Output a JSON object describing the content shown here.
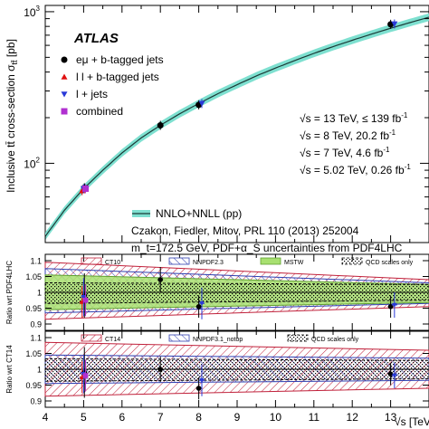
{
  "chart_data": {
    "type": "line",
    "experiment": "ATLAS",
    "ylabel": "Inclusive tt̄ cross-section σ",
    "ylabel_sub": "tt̄",
    "ylabel_unit": "[pb]",
    "xlabel": "√s [TeV]",
    "scale": "log",
    "xlim": [
      4,
      14
    ],
    "ylim": [
      30,
      1100
    ],
    "x_ticks": [
      "4",
      "5",
      "6",
      "7",
      "8",
      "9",
      "10",
      "11",
      "12",
      "13"
    ],
    "y_ticks": [
      {
        "value": 100,
        "base": "10",
        "exp": "2"
      },
      {
        "value": 1000,
        "base": "10",
        "exp": "3"
      }
    ],
    "theory_curve": {
      "name": "NNLO+NNLL (pp)",
      "x": [
        4,
        4.5,
        5,
        5.5,
        6,
        6.5,
        7,
        7.5,
        8,
        8.5,
        9,
        9.5,
        10,
        10.5,
        11,
        11.5,
        12,
        12.5,
        13,
        13.5,
        14
      ],
      "y": [
        33,
        49,
        68,
        90,
        117,
        147,
        178,
        212,
        248,
        288,
        330,
        377,
        425,
        476,
        531,
        588,
        648,
        711,
        778,
        847,
        920
      ]
    },
    "theory_lines": [
      "Czakon, Fiedler, Mitov, PRL 110 (2013) 252004",
      "m_t=172.5 GeV, PDF+α_S uncertainties from PDF4LHC"
    ],
    "series": [
      {
        "name": "eμ + b-tagged jets",
        "color": "#000000",
        "marker": "circle",
        "points": [
          {
            "x": 5.02,
            "y": 69
          },
          {
            "x": 7,
            "y": 178
          },
          {
            "x": 8,
            "y": 243
          },
          {
            "x": 13,
            "y": 826
          }
        ]
      },
      {
        "name": "l l + b-tagged jets",
        "color": "#e01010",
        "marker": "triangle-up",
        "points": [
          {
            "x": 4.96,
            "y": 66
          }
        ]
      },
      {
        "name": "l + jets",
        "color": "#2a3ad8",
        "marker": "triangle-down",
        "points": [
          {
            "x": 5.0,
            "y": 68
          },
          {
            "x": 8.08,
            "y": 248
          },
          {
            "x": 13.1,
            "y": 830
          }
        ]
      },
      {
        "name": "combined",
        "color": "#b030d0",
        "marker": "square",
        "points": [
          {
            "x": 5.05,
            "y": 68
          }
        ]
      }
    ],
    "energy_labels": [
      {
        "rs": "√s = 13 TeV, ≤ 139 fb",
        "sup": "-1"
      },
      {
        "rs": "√s = 8 TeV, 20.2 fb",
        "sup": "-1"
      },
      {
        "rs": "√s = 7 TeV, 4.6 fb",
        "sup": "-1"
      },
      {
        "rs": "√s = 5.02 TeV, 0.26 fb",
        "sup": "-1"
      }
    ],
    "ratio_panels": [
      {
        "ylabel": "Ratio wrt PDF4LHC",
        "ylim": [
          0.88,
          1.12
        ],
        "y_ticks": [
          "1.1",
          "1.05",
          "1",
          "0.95",
          "0.9"
        ],
        "legend": [
          "CT10",
          "NNPDF2.3",
          "MSTW",
          "QCD scales only"
        ],
        "bands": {
          "ct10": {
            "x": [
              4,
              14
            ],
            "lo": [
              0.915,
              0.955
            ],
            "hi": [
              1.095,
              1.04
            ]
          },
          "nnpdf": {
            "x": [
              4,
              14
            ],
            "lo": [
              0.935,
              0.965
            ],
            "hi": [
              1.075,
              1.03
            ]
          },
          "mstw": {
            "x": [
              4,
              14
            ],
            "lo": [
              0.945,
              0.968
            ],
            "hi": [
              1.055,
              1.025
            ]
          },
          "qcd": {
            "x": [
              4,
              14
            ],
            "lo": [
              0.965,
              0.975
            ],
            "hi": [
              1.03,
              1.025
            ]
          }
        },
        "points": [
          {
            "x": 5.02,
            "y": 0.99,
            "err": 0.07,
            "color": "#000000",
            "marker": "circle"
          },
          {
            "x": 4.96,
            "y": 0.97,
            "err": 0.05,
            "color": "#e01010",
            "marker": "triangle-up"
          },
          {
            "x": 5.0,
            "y": 0.985,
            "err": 0.06,
            "color": "#2a3ad8",
            "marker": "triangle-down"
          },
          {
            "x": 5.05,
            "y": 0.975,
            "err": 0.05,
            "color": "#b030d0",
            "marker": "square"
          },
          {
            "x": 7,
            "y": 1.04,
            "err": 0.04,
            "color": "#000000",
            "marker": "circle"
          },
          {
            "x": 8,
            "y": 0.955,
            "err": 0.035,
            "color": "#000000",
            "marker": "circle"
          },
          {
            "x": 8.08,
            "y": 0.965,
            "err": 0.05,
            "color": "#2a3ad8",
            "marker": "triangle-down"
          },
          {
            "x": 13,
            "y": 0.955,
            "err": 0.035,
            "color": "#000000",
            "marker": "circle"
          },
          {
            "x": 13.1,
            "y": 0.96,
            "err": 0.04,
            "color": "#2a3ad8",
            "marker": "triangle-down"
          }
        ]
      },
      {
        "ylabel": "Ratio wrt CT14",
        "ylim": [
          0.88,
          1.12
        ],
        "y_ticks": [
          "1.1",
          "1.05",
          "1",
          "0.95",
          "0.9"
        ],
        "legend": [
          "CT14",
          "NNPDF3.1_notop",
          "QCD scales only"
        ],
        "bands": {
          "ct14": {
            "x": [
              4,
              14
            ],
            "lo": [
              0.915,
              0.94
            ],
            "hi": [
              1.085,
              1.06
            ]
          },
          "nnpdf": {
            "x": [
              4,
              14
            ],
            "lo": [
              0.955,
              0.965
            ],
            "hi": [
              1.045,
              1.035
            ]
          },
          "qcd": {
            "x": [
              4,
              14
            ],
            "lo": [
              0.962,
              0.97
            ],
            "hi": [
              1.033,
              1.028
            ]
          }
        },
        "points": [
          {
            "x": 5.02,
            "y": 0.99,
            "err": 0.08,
            "color": "#000000",
            "marker": "circle"
          },
          {
            "x": 4.96,
            "y": 0.975,
            "err": 0.05,
            "color": "#e01010",
            "marker": "triangle-up"
          },
          {
            "x": 5.0,
            "y": 0.985,
            "err": 0.06,
            "color": "#2a3ad8",
            "marker": "triangle-down"
          },
          {
            "x": 5.05,
            "y": 0.98,
            "err": 0.05,
            "color": "#b030d0",
            "marker": "square"
          },
          {
            "x": 7,
            "y": 1.0,
            "err": 0.04,
            "color": "#000000",
            "marker": "circle"
          },
          {
            "x": 8,
            "y": 0.94,
            "err": 0.035,
            "color": "#000000",
            "marker": "circle"
          },
          {
            "x": 8.08,
            "y": 0.965,
            "err": 0.05,
            "color": "#2a3ad8",
            "marker": "triangle-down"
          },
          {
            "x": 13,
            "y": 0.985,
            "err": 0.035,
            "color": "#000000",
            "marker": "circle"
          },
          {
            "x": 13.1,
            "y": 0.98,
            "err": 0.04,
            "color": "#2a3ad8",
            "marker": "triangle-down"
          }
        ]
      }
    ],
    "colors": {
      "theory_band": "#7ee0d0",
      "theory_line": "#1b3a36",
      "ct_hatch": "#c0203a",
      "nnpdf_hatch": "#3040b0",
      "mstw_fill": "#a8e070",
      "qcd_hatch": "#000000"
    }
  }
}
